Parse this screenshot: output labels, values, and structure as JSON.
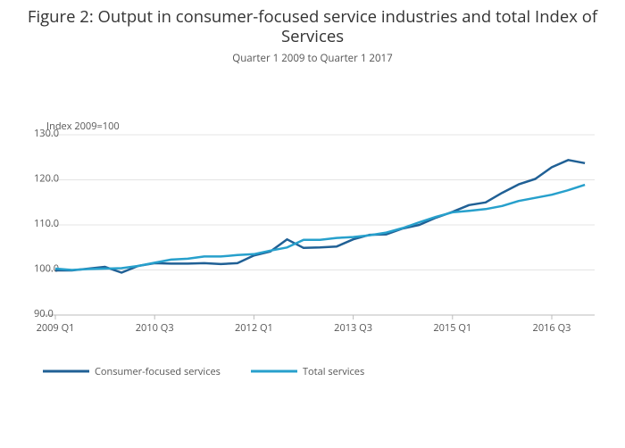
{
  "chart_data": {
    "type": "line",
    "title": "Figure 2: Output in consumer-focused service industries and total Index of Services",
    "subtitle": "Quarter 1 2009 to Quarter 1 2017",
    "y_label": "Index 2009=100",
    "categories": [
      "2009 Q1",
      null,
      null,
      null,
      null,
      null,
      "2010 Q3",
      null,
      null,
      null,
      null,
      null,
      "2012 Q1",
      null,
      null,
      null,
      null,
      null,
      "2013 Q3",
      null,
      null,
      null,
      null,
      null,
      "2015 Q1",
      null,
      null,
      null,
      null,
      null,
      "2016 Q3",
      null,
      null
    ],
    "series": [
      {
        "name": "Consumer-focused services",
        "color": "#206095",
        "values": [
          99.9,
          99.9,
          100.3,
          100.7,
          99.4,
          100.9,
          101.5,
          101.4,
          101.4,
          101.5,
          101.3,
          101.5,
          103.2,
          104.1,
          106.8,
          104.9,
          105.0,
          105.2,
          106.8,
          107.8,
          107.9,
          109.2,
          110.0,
          111.6,
          112.9,
          114.4,
          115.0,
          117.1,
          119.0,
          120.2,
          122.8,
          124.4,
          123.7
        ]
      },
      {
        "name": "Total services",
        "color": "#27a0cc",
        "values": [
          100.3,
          100.0,
          100.2,
          100.3,
          100.4,
          100.9,
          101.6,
          102.3,
          102.5,
          103.0,
          103.0,
          103.3,
          103.5,
          104.3,
          105.0,
          106.7,
          106.7,
          107.1,
          107.3,
          107.7,
          108.3,
          109.3,
          110.6,
          111.8,
          112.8,
          113.1,
          113.5,
          114.2,
          115.3,
          116.0,
          116.7,
          117.7,
          118.9
        ]
      }
    ],
    "ylim": [
      90,
      130
    ],
    "yticks": [
      {
        "value": 90,
        "label": "90.0"
      },
      {
        "value": 100,
        "label": "100.0"
      },
      {
        "value": 110,
        "label": "110.0"
      },
      {
        "value": 120,
        "label": "120.0"
      },
      {
        "value": 130,
        "label": "130.0"
      }
    ],
    "grid": true
  }
}
